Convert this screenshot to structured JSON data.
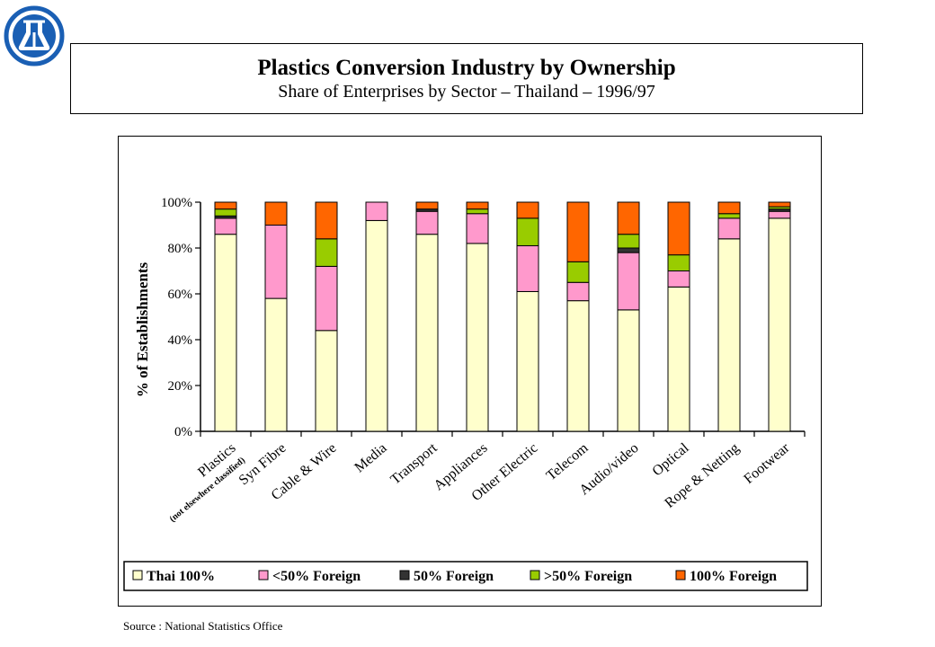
{
  "header": {
    "title": "Plastics Conversion Industry by Ownership",
    "subtitle": "Share of Enterprises by Sector – Thailand – 1996/97"
  },
  "logo": {
    "icon": "flask-emblem-icon",
    "color": "#1a5fb4"
  },
  "footer": {
    "source": "Source : National Statistics Office"
  },
  "chart_data": {
    "type": "bar",
    "stacked": true,
    "ylabel": "% of Establishments",
    "ylim": [
      0,
      100
    ],
    "yticks": [
      "0%",
      "20%",
      "40%",
      "60%",
      "80%",
      "100%"
    ],
    "grid": false,
    "legend_position": "bottom",
    "categories": [
      "Plastics",
      "Syn Fibre",
      "Cable & Wire",
      "Media",
      "Transport",
      "Appliances",
      "Other Electric",
      "Telecom",
      "Audio/video",
      "Optical",
      "Rope & Netting",
      "Footwear"
    ],
    "category_notes": [
      "(not elsewhere classified)",
      "",
      "",
      "",
      "",
      "",
      "",
      "",
      "",
      "",
      "",
      ""
    ],
    "series": [
      {
        "name": "Thai 100%",
        "color": "#ffffcc",
        "values": [
          86,
          58,
          44,
          92,
          86,
          82,
          61,
          57,
          53,
          63,
          84,
          93
        ]
      },
      {
        "name": "<50% Foreign",
        "color": "#ff99cc",
        "values": [
          7,
          32,
          28,
          8,
          10,
          13,
          20,
          8,
          25,
          7,
          9,
          3
        ]
      },
      {
        "name": "50% Foreign",
        "color": "#333333",
        "values": [
          1,
          0,
          0,
          0,
          1,
          0,
          0,
          0,
          2,
          0,
          0,
          1
        ]
      },
      {
        "name": ">50% Foreign",
        "color": "#99cc00",
        "values": [
          3,
          0,
          12,
          0,
          0,
          2,
          12,
          9,
          6,
          7,
          2,
          1
        ]
      },
      {
        "name": "100% Foreign",
        "color": "#ff6600",
        "values": [
          3,
          10,
          16,
          0,
          3,
          3,
          7,
          26,
          14,
          23,
          5,
          2
        ]
      }
    ]
  }
}
